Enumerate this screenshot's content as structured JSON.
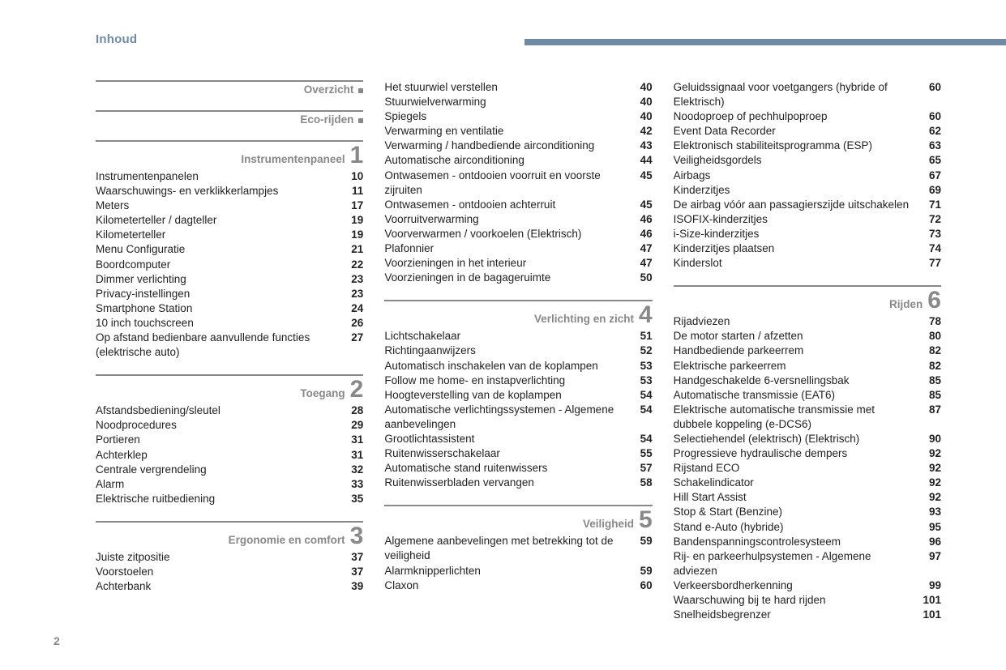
{
  "header": {
    "title": "Inhoud"
  },
  "pageNumber": "2",
  "columns": [
    {
      "sections": [
        {
          "title": "Overzicht",
          "num": null,
          "dot": true,
          "entries": []
        },
        {
          "title": "Eco-rijden",
          "num": null,
          "dot": true,
          "entries": []
        },
        {
          "title": "Instrumentenpaneel",
          "num": "1",
          "dot": false,
          "entries": [
            {
              "label": "Instrumentenpanelen",
              "page": "10"
            },
            {
              "label": "Waarschuwings- en verklikkerlampjes",
              "page": "11"
            },
            {
              "label": "Meters",
              "page": "17"
            },
            {
              "label": "Kilometerteller / dagteller",
              "page": "19"
            },
            {
              "label": "Kilometerteller",
              "page": "19"
            },
            {
              "label": "Menu Configuratie",
              "page": "21"
            },
            {
              "label": "Boordcomputer",
              "page": "22"
            },
            {
              "label": "Dimmer verlichting",
              "page": "23"
            },
            {
              "label": "Privacy-instellingen",
              "page": "23"
            },
            {
              "label": "Smartphone Station",
              "page": "24"
            },
            {
              "label": "10 inch touchscreen",
              "page": "26"
            },
            {
              "label": "Op afstand bedienbare aanvullende functies (elektrische auto)",
              "page": "27"
            }
          ]
        },
        {
          "title": "Toegang",
          "num": "2",
          "dot": false,
          "entries": [
            {
              "label": "Afstandsbediening/sleutel",
              "page": "28"
            },
            {
              "label": "Noodprocedures",
              "page": "29"
            },
            {
              "label": "Portieren",
              "page": "31"
            },
            {
              "label": "Achterklep",
              "page": "31"
            },
            {
              "label": "Centrale vergrendeling",
              "page": "32"
            },
            {
              "label": "Alarm",
              "page": "33"
            },
            {
              "label": "Elektrische ruitbediening",
              "page": "35"
            }
          ]
        },
        {
          "title": "Ergonomie en comfort",
          "num": "3",
          "dot": false,
          "entries": [
            {
              "label": "Juiste zitpositie",
              "page": "37"
            },
            {
              "label": "Voorstoelen",
              "page": "37"
            },
            {
              "label": "Achterbank",
              "page": "39"
            }
          ]
        }
      ]
    },
    {
      "sections": [
        {
          "title": null,
          "num": null,
          "dot": false,
          "entries": [
            {
              "label": "Het stuurwiel verstellen",
              "page": "40"
            },
            {
              "label": "Stuurwielverwarming",
              "page": "40"
            },
            {
              "label": "Spiegels",
              "page": "40"
            },
            {
              "label": "Verwarming en ventilatie",
              "page": "42"
            },
            {
              "label": "Verwarming / handbediende airconditioning",
              "page": "43"
            },
            {
              "label": "Automatische airconditioning",
              "page": "44"
            },
            {
              "label": "Ontwasemen - ontdooien voorruit en voorste zijruiten",
              "page": "45"
            },
            {
              "label": "Ontwasemen - ontdooien achterruit",
              "page": "45"
            },
            {
              "label": "Voorruitverwarming",
              "page": "46"
            },
            {
              "label": "Voorverwarmen / voorkoelen (Elektrisch)",
              "page": "46"
            },
            {
              "label": "Plafonnier",
              "page": "47"
            },
            {
              "label": "Voorzieningen in het interieur",
              "page": "47"
            },
            {
              "label": "Voorzieningen in de bagageruimte",
              "page": "50"
            }
          ]
        },
        {
          "title": "Verlichting en zicht",
          "num": "4",
          "dot": false,
          "entries": [
            {
              "label": "Lichtschakelaar",
              "page": "51"
            },
            {
              "label": "Richtingaanwijzers",
              "page": "52"
            },
            {
              "label": "Automatisch inschakelen van de koplampen",
              "page": "53"
            },
            {
              "label": "Follow me home- en instapverlichting",
              "page": "53"
            },
            {
              "label": "Hoogteverstelling van de koplampen",
              "page": "54"
            },
            {
              "label": "Automatische verlichtingssystemen - Algemene aanbevelingen",
              "page": "54"
            },
            {
              "label": "Grootlichtassistent",
              "page": "54"
            },
            {
              "label": "Ruitenwisserschakelaar",
              "page": "55"
            },
            {
              "label": "Automatische stand ruitenwissers",
              "page": "57"
            },
            {
              "label": "Ruitenwisserbladen vervangen",
              "page": "58"
            }
          ]
        },
        {
          "title": "Veiligheid",
          "num": "5",
          "dot": false,
          "entries": [
            {
              "label": "Algemene aanbevelingen met betrekking tot de veiligheid",
              "page": "59"
            },
            {
              "label": "Alarmknipperlichten",
              "page": "59"
            },
            {
              "label": "Claxon",
              "page": "60"
            }
          ]
        }
      ]
    },
    {
      "sections": [
        {
          "title": null,
          "num": null,
          "dot": false,
          "entries": [
            {
              "label": "Geluidssignaal voor voetgangers (hybride of Elektrisch)",
              "page": "60"
            },
            {
              "label": "Noodoproep of pechhulpoproep",
              "page": "60"
            },
            {
              "label": "Event Data Recorder",
              "page": "62"
            },
            {
              "label": "Elektronisch stabiliteitsprogramma (ESP)",
              "page": "63"
            },
            {
              "label": "Veiligheidsgordels",
              "page": "65"
            },
            {
              "label": "Airbags",
              "page": "67"
            },
            {
              "label": "Kinderzitjes",
              "page": "69"
            },
            {
              "label": "De airbag vóór aan passagierszijde uitschakelen",
              "page": "71"
            },
            {
              "label": "ISOFIX-kinderzitjes",
              "page": "72"
            },
            {
              "label": "i-Size-kinderzitjes",
              "page": "73"
            },
            {
              "label": "Kinderzitjes plaatsen",
              "page": "74"
            },
            {
              "label": "Kinderslot",
              "page": "77"
            }
          ]
        },
        {
          "title": "Rijden",
          "num": "6",
          "dot": false,
          "entries": [
            {
              "label": "Rijadviezen",
              "page": "78"
            },
            {
              "label": "De motor starten / afzetten",
              "page": "80"
            },
            {
              "label": "Handbediende parkeerrem",
              "page": "82"
            },
            {
              "label": "Elektrische parkeerrem",
              "page": "82"
            },
            {
              "label": "Handgeschakelde 6-versnellingsbak",
              "page": "85"
            },
            {
              "label": "Automatische transmissie (EAT6)",
              "page": "85"
            },
            {
              "label": "Elektrische automatische transmissie met dubbele koppeling (e-DCS6)",
              "page": "87"
            },
            {
              "label": "Selectiehendel (elektrisch) (Elektrisch)",
              "page": "90"
            },
            {
              "label": "Progressieve hydraulische dempers",
              "page": "92"
            },
            {
              "label": "Rijstand ECO",
              "page": "92"
            },
            {
              "label": "Schakelindicator",
              "page": "92"
            },
            {
              "label": "Hill Start Assist",
              "page": "92"
            },
            {
              "label": "Stop & Start (Benzine)",
              "page": "93"
            },
            {
              "label": "Stand e-Auto (hybride)",
              "page": "95"
            },
            {
              "label": "Bandenspanningscontrolesysteem",
              "page": "96"
            },
            {
              "label": "Rij- en parkeerhulpsystemen - Algemene adviezen",
              "page": "97"
            },
            {
              "label": "Verkeersbordherkenning",
              "page": "99"
            },
            {
              "label": "Waarschuwing bij te hard rijden",
              "page": "101"
            },
            {
              "label": "Snelheidsbegrenzer",
              "page": "101"
            }
          ]
        }
      ]
    }
  ]
}
